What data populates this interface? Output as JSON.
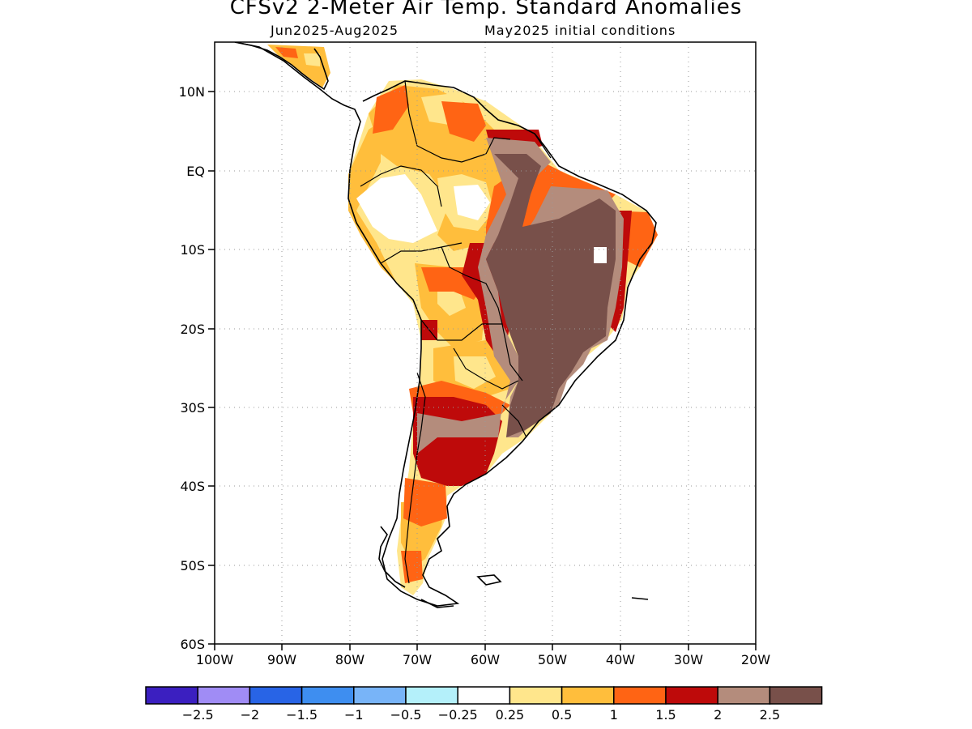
{
  "header": {
    "title": "CFSv2 2-Meter Air Temp. Standard Anomalies",
    "subtitle_left": "Jun2025-Aug2025",
    "subtitle_right": "May2025 initial conditions"
  },
  "map": {
    "region": "South America",
    "lon_range": [
      -100,
      -20
    ],
    "lat_range": [
      -60,
      15
    ],
    "lat_ticks": [
      "10N",
      "EQ",
      "10S",
      "20S",
      "30S",
      "40S",
      "50S",
      "60S"
    ],
    "lon_ticks": [
      "100W",
      "90W",
      "80W",
      "70W",
      "60W",
      "50W",
      "40W",
      "30W",
      "20W"
    ],
    "gridlines": "dotted"
  },
  "legend": {
    "colors": [
      "#3b1fc0",
      "#a08cf5",
      "#2864e6",
      "#3e8ef0",
      "#78b4f8",
      "#b4f0fa",
      "#ffffff",
      "#ffe68c",
      "#ffbe3c",
      "#ff6414",
      "#be0a0a",
      "#b48c7c",
      "#78504a"
    ],
    "labels": [
      "-2.5",
      "-2",
      "-1.5",
      "-1",
      "-0.5",
      "-0.25",
      "0.25",
      "0.5",
      "1",
      "1.5",
      "2",
      "2.5"
    ]
  }
}
